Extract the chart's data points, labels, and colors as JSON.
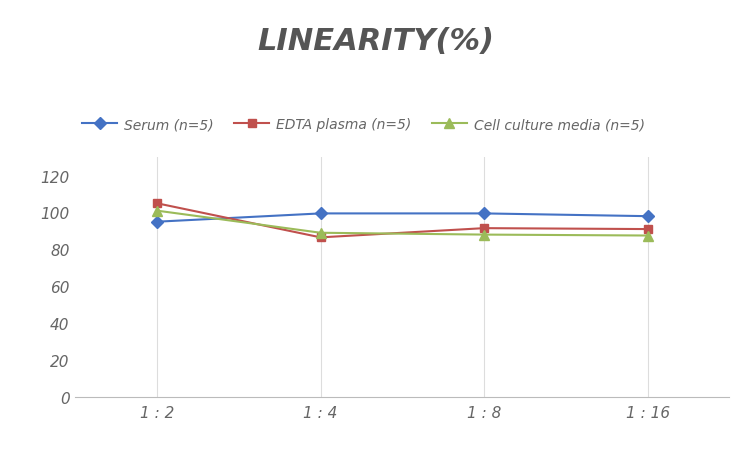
{
  "title": "LINEARITY(%)",
  "title_fontsize": 22,
  "title_fontstyle": "italic",
  "title_fontweight": "bold",
  "title_color": "#555555",
  "x_labels": [
    "1 : 2",
    "1 : 4",
    "1 : 8",
    "1 : 16"
  ],
  "x_positions": [
    0,
    1,
    2,
    3
  ],
  "serum": [
    95,
    99.5,
    99.5,
    98
  ],
  "edta": [
    105,
    86.5,
    91.5,
    91
  ],
  "cell": [
    101,
    89,
    88,
    87.5
  ],
  "serum_color": "#4472C4",
  "edta_color": "#C0504D",
  "cell_color": "#9BBB59",
  "serum_label": "Serum (n=5)",
  "edta_label": "EDTA plasma (n=5)",
  "cell_label": "Cell culture media (n=5)",
  "ylim": [
    0,
    130
  ],
  "yticks": [
    0,
    20,
    40,
    60,
    80,
    100,
    120
  ],
  "grid_color": "#DDDDDD",
  "background_color": "#FFFFFF",
  "tick_color": "#666666",
  "tick_fontsize": 11,
  "legend_fontsize": 10
}
